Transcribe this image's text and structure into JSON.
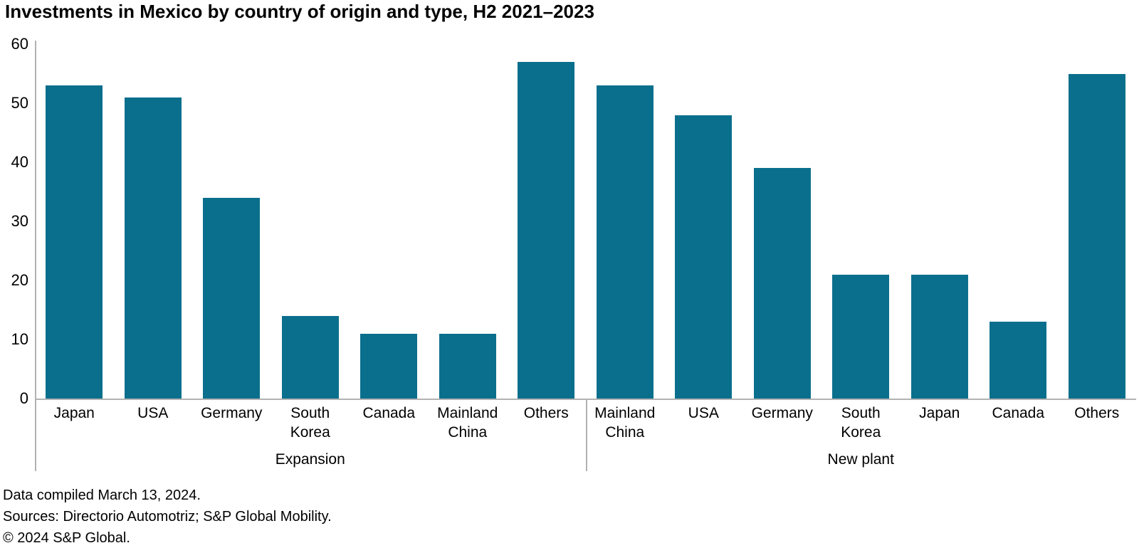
{
  "chart_data": {
    "type": "bar",
    "title": "Investments in Mexico by country of origin and type, H2 2021–2023",
    "xlabel": "",
    "ylabel": "",
    "ylim": [
      0,
      60
    ],
    "yticks": [
      0,
      10,
      20,
      30,
      40,
      50,
      60
    ],
    "grid": false,
    "legend": false,
    "bar_color": "#0A6F8C",
    "axis_color": "#B2B2B2",
    "groups": [
      {
        "label": "Expansion",
        "categories": [
          "Japan",
          "USA",
          "Germany",
          "South Korea",
          "Canada",
          "Mainland China",
          "Others"
        ],
        "values": [
          53,
          51,
          34,
          14,
          11,
          11,
          57
        ]
      },
      {
        "label": "New plant",
        "categories": [
          "Mainland China",
          "USA",
          "Germany",
          "South Korea",
          "Japan",
          "Canada",
          "Others"
        ],
        "values": [
          53,
          48,
          39,
          21,
          21,
          13,
          55
        ]
      }
    ]
  },
  "footnotes": {
    "compiled": "Data compiled March 13, 2024.",
    "sources": "Sources: Directorio Automotriz; S&P Global Mobility.",
    "copyright": "© 2024 S&P Global."
  }
}
